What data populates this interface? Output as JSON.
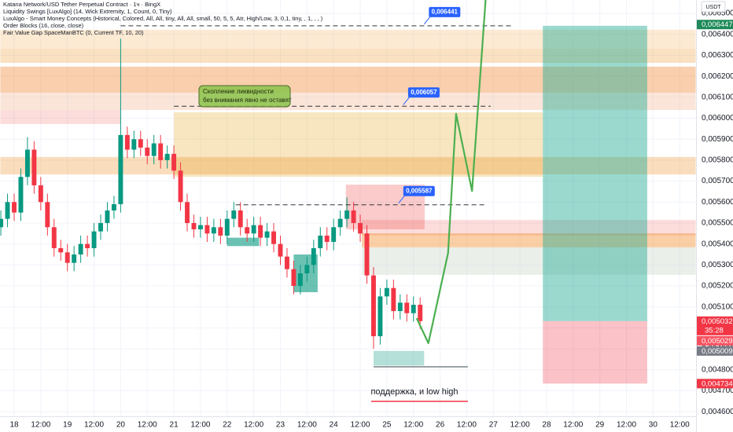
{
  "chart_data": {
    "type": "candlestick",
    "title": "Katana Network/USD Tether Perpetual Contract · 1ч · BingX",
    "indicators": [
      "Liquidity Swings [LuxAlgo] (14, Wick Extremity, 1, Count, 0, Tiny)",
      "LuxAlgo - Smart Money Concepts (Historical, Colored, All, All, tiny, All, All, small, 50, 5, 5, Atr, High/Low, 3, 0,1, tiny, , 1, , , )",
      "Order Blocks (16, close, close)",
      "Fair Value Gap SpaceManBTC (0, Current TF, 10, 20)"
    ],
    "currency": "USDT",
    "xlim": [
      17.734,
      30.807
    ],
    "ylim": [
      0.004578,
      0.006564
    ],
    "xticks": [
      18,
      {
        "value": 18.5,
        "label": "12:00"
      },
      19,
      {
        "value": 19.5,
        "label": "12:00"
      },
      20,
      {
        "value": 20.5,
        "label": "12:00"
      },
      21,
      {
        "value": 21.5,
        "label": "12:00"
      },
      22,
      {
        "value": 22.5,
        "label": "12:00"
      },
      23,
      {
        "value": 23.5,
        "label": "12:00"
      },
      24,
      {
        "value": 24.5,
        "label": "12:00"
      },
      25,
      {
        "value": 25.5,
        "label": "12:00"
      },
      26,
      {
        "value": 26.5,
        "label": "12:00"
      },
      27,
      {
        "value": 27.5,
        "label": "12:00"
      },
      28,
      {
        "value": 28.5,
        "label": "12:00"
      },
      29,
      {
        "value": 29.5,
        "label": "12:00"
      },
      30,
      {
        "value": 30.5,
        "label": "12:00"
      }
    ],
    "yticks": [
      {
        "value": 0.0046,
        "label": "0,004600"
      },
      {
        "value": 0.0047,
        "label": "0,004700"
      },
      {
        "value": 0.0048,
        "label": "0,004800"
      },
      {
        "value": 0.0049,
        "label": "0,004900"
      },
      {
        "value": 0.005,
        "label": "0,005000"
      },
      {
        "value": 0.0051,
        "label": "0,005100"
      },
      {
        "value": 0.0052,
        "label": "0,005200"
      },
      {
        "value": 0.0053,
        "label": "0,005300"
      },
      {
        "value": 0.0054,
        "label": "0,005400"
      },
      {
        "value": 0.0055,
        "label": "0,005500"
      },
      {
        "value": 0.0056,
        "label": "0,005600"
      },
      {
        "value": 0.0057,
        "label": "0,005700"
      },
      {
        "value": 0.0058,
        "label": "0,005800"
      },
      {
        "value": 0.0059,
        "label": "0,005900"
      },
      {
        "value": 0.006,
        "label": "0,006000"
      },
      {
        "value": 0.0061,
        "label": "0,006100"
      },
      {
        "value": 0.0062,
        "label": "0,006200"
      },
      {
        "value": 0.0063,
        "label": "0,006300"
      },
      {
        "value": 0.0064,
        "label": "0,006400"
      },
      {
        "value": 0.0065,
        "label": "0,006500"
      }
    ],
    "grid": true,
    "up_color": "#089981",
    "down_color": "#f23645",
    "candles": {
      "x": [
        17.75,
        17.875,
        18,
        18.125,
        18.25,
        18.375,
        18.5,
        18.625,
        18.75,
        18.875,
        19,
        19.125,
        19.25,
        19.375,
        19.5,
        19.625,
        19.75,
        19.875,
        20,
        20.125,
        20.25,
        20.375,
        20.5,
        20.625,
        20.75,
        20.875,
        21,
        21.125,
        21.25,
        21.375,
        21.5,
        21.625,
        21.75,
        21.875,
        22,
        22.125,
        22.25,
        22.375,
        22.5,
        22.625,
        22.75,
        22.875,
        23,
        23.125,
        23.25,
        23.375,
        23.5,
        23.625,
        23.75,
        23.875,
        24,
        24.125,
        24.25,
        24.375,
        24.5,
        24.625,
        24.75,
        24.875,
        25,
        25.125,
        25.25,
        25.375,
        25.5,
        25.625
      ],
      "open": [
        0.00548,
        0.00552,
        0.0056,
        0.00555,
        0.00572,
        0.00585,
        0.00568,
        0.0056,
        0.00548,
        0.00538,
        0.00536,
        0.00531,
        0.00535,
        0.0054,
        0.00538,
        0.00546,
        0.0055,
        0.00556,
        0.00559,
        0.00592,
        0.00585,
        0.0059,
        0.00586,
        0.00582,
        0.00588,
        0.0058,
        0.00583,
        0.00575,
        0.0056,
        0.0055,
        0.00547,
        0.00549,
        0.00545,
        0.00548,
        0.00544,
        0.00552,
        0.00556,
        0.00548,
        0.00545,
        0.00549,
        0.00543,
        0.00546,
        0.0054,
        0.00534,
        0.00528,
        0.0052,
        0.00526,
        0.0053,
        0.00538,
        0.00544,
        0.00541,
        0.00548,
        0.00552,
        0.00556,
        0.0055,
        0.00545,
        0.00525,
        0.00496,
        0.00515,
        0.00519,
        0.00508,
        0.00512,
        0.00507,
        0.00511
      ],
      "high": [
        0.00556,
        0.00564,
        0.00564,
        0.00576,
        0.00591,
        0.00589,
        0.00572,
        0.00564,
        0.00552,
        0.00542,
        0.0054,
        0.00539,
        0.00544,
        0.00544,
        0.0055,
        0.00554,
        0.0056,
        0.00563,
        0.00638,
        0.00596,
        0.00594,
        0.00594,
        0.0059,
        0.00592,
        0.00592,
        0.00587,
        0.00587,
        0.00579,
        0.00564,
        0.00554,
        0.00553,
        0.00553,
        0.00552,
        0.00552,
        0.00556,
        0.0056,
        0.0056,
        0.00552,
        0.00553,
        0.00553,
        0.0055,
        0.0055,
        0.00544,
        0.00538,
        0.00532,
        0.0053,
        0.00534,
        0.00542,
        0.00548,
        0.00548,
        0.00552,
        0.00556,
        0.005623,
        0.0056,
        0.00554,
        0.00549,
        0.00529,
        0.00519,
        0.00523,
        0.00523,
        0.00516,
        0.00516,
        0.00515,
        0.005145
      ],
      "low": [
        0.00544,
        0.00548,
        0.00551,
        0.00551,
        0.00568,
        0.00564,
        0.00556,
        0.00544,
        0.00534,
        0.00532,
        0.00527,
        0.00527,
        0.00531,
        0.00534,
        0.00534,
        0.00542,
        0.00546,
        0.00552,
        0.00555,
        0.00581,
        0.00581,
        0.00582,
        0.00578,
        0.00578,
        0.00576,
        0.00576,
        0.00571,
        0.00556,
        0.00546,
        0.00543,
        0.00543,
        0.00541,
        0.00541,
        0.0054,
        0.0054,
        0.00548,
        0.00544,
        0.00541,
        0.00541,
        0.00539,
        0.00539,
        0.00536,
        0.0053,
        0.00524,
        0.00516,
        0.00516,
        0.00522,
        0.00526,
        0.00534,
        0.00537,
        0.00537,
        0.00544,
        0.00548,
        0.00546,
        0.00541,
        0.00521,
        0.0049,
        0.00492,
        0.00511,
        0.00504,
        0.00504,
        0.00503,
        0.00503,
        0.004995
      ],
      "close": [
        0.00552,
        0.0056,
        0.00555,
        0.00572,
        0.00585,
        0.00568,
        0.0056,
        0.00548,
        0.00538,
        0.00536,
        0.00531,
        0.00535,
        0.0054,
        0.00538,
        0.00546,
        0.0055,
        0.00556,
        0.00559,
        0.00592,
        0.00585,
        0.0059,
        0.00586,
        0.00582,
        0.00588,
        0.0058,
        0.00583,
        0.00575,
        0.0056,
        0.0055,
        0.00547,
        0.00549,
        0.00545,
        0.00548,
        0.00544,
        0.00552,
        0.00556,
        0.00548,
        0.00545,
        0.00549,
        0.00543,
        0.00546,
        0.0054,
        0.00534,
        0.00528,
        0.0052,
        0.00526,
        0.0053,
        0.00538,
        0.00544,
        0.00541,
        0.00548,
        0.00552,
        0.00556,
        0.0055,
        0.00545,
        0.00525,
        0.00496,
        0.00515,
        0.00519,
        0.00508,
        0.00512,
        0.00507,
        0.00511,
        0.005032
      ]
    },
    "zones": [
      {
        "x": [
          17.74,
          30.8
        ],
        "range": [
          0.006332,
          0.006422
        ],
        "color": "rgba(242,170,80,0.25)"
      },
      {
        "x": [
          17.74,
          30.8
        ],
        "range": [
          0.006264,
          0.006332
        ],
        "color": "rgba(242,170,80,0.35)"
      },
      {
        "x": [
          17.74,
          30.8
        ],
        "range": [
          0.006122,
          0.006246
        ],
        "color": "rgba(240,140,60,0.42)"
      },
      {
        "x": [
          17.74,
          30.8
        ],
        "range": [
          0.006039,
          0.006122
        ],
        "color": "rgba(240,160,120,0.28)"
      },
      {
        "x": [
          17.74,
          20.0
        ],
        "range": [
          0.005972,
          0.006039
        ],
        "color": "rgba(239,83,80,0.2)"
      },
      {
        "x": [
          21.0,
          27.93
        ],
        "range": [
          0.005721,
          0.006028
        ],
        "color": "rgba(230,180,60,0.33)"
      },
      {
        "x": [
          17.74,
          30.8
        ],
        "range": [
          0.005732,
          0.005815
        ],
        "color": "rgba(240,150,50,0.32)"
      },
      {
        "x": [
          24.53,
          30.8
        ],
        "range": [
          0.005253,
          0.005384
        ],
        "color": "rgba(170,190,170,0.25)"
      },
      {
        "x": [
          24.53,
          30.8
        ],
        "range": [
          0.00544,
          0.005515
        ],
        "color": "rgba(239,83,80,0.2)"
      },
      {
        "x": [
          24.53,
          30.8
        ],
        "range": [
          0.005384,
          0.005451
        ],
        "color": "rgba(245,140,40,0.42)"
      },
      {
        "x": [
          24.23,
          25.71
        ],
        "range": [
          0.00547,
          0.005683
        ],
        "color": "rgba(239,83,80,0.3)"
      },
      {
        "x": [
          27.93,
          29.89
        ],
        "range": [
          0.005032,
          0.006441
        ],
        "color": "rgba(34,171,148,0.45)"
      },
      {
        "x": [
          27.93,
          29.89
        ],
        "range": [
          0.004734,
          0.005032
        ],
        "color": "rgba(242,54,69,0.3)"
      },
      {
        "x": [
          22.0,
          22.6
        ],
        "range": [
          0.00539,
          0.00543
        ],
        "color": "rgba(8,153,129,0.6)"
      },
      {
        "x": [
          23.25,
          23.7
        ],
        "range": [
          0.00517,
          0.00535
        ],
        "color": "rgba(8,153,129,0.6)"
      },
      {
        "x": [
          24.75,
          25.7
        ],
        "range": [
          0.00482,
          0.00489
        ],
        "color": "rgba(8,153,129,0.3)"
      }
    ],
    "levels": [
      {
        "value": 0.006441,
        "label": "0,006441",
        "x": [
          20.0,
          27.34
        ]
      },
      {
        "value": 0.006057,
        "label": "0,006057",
        "x": [
          21.0,
          26.95
        ]
      },
      {
        "value": 0.005587,
        "label": "0,005587",
        "x": [
          22.16,
          26.86
        ]
      }
    ],
    "support": {
      "value": 0.004814,
      "x": [
        24.75,
        26.52
      ],
      "label": "поддержка, и low high"
    },
    "projection": {
      "color": "#4caf50",
      "x": [
        25.56,
        25.78,
        26.15,
        26.3,
        26.6,
        26.86
      ],
      "values": [
        0.005046,
        0.004927,
        0.005357,
        0.006021,
        0.005653,
        0.006583
      ]
    },
    "annotation": [
      "Скопление ликвидности",
      "без внимания явно не оставят"
    ],
    "price_tags": [
      {
        "value": 0.006447,
        "label": "0,006447",
        "color": "#1e8a5a"
      },
      {
        "value": 0.005032,
        "label": "0,005032",
        "color": "#f23645",
        "countdown": "35:28"
      },
      {
        "value": 0.005029,
        "label": "0,005029",
        "color": "#f7525f"
      },
      {
        "value": 0.005009,
        "label": "0,005009",
        "color": "#787b86"
      },
      {
        "value": 0.004734,
        "label": "0,004734",
        "color": "#f23645"
      }
    ]
  }
}
